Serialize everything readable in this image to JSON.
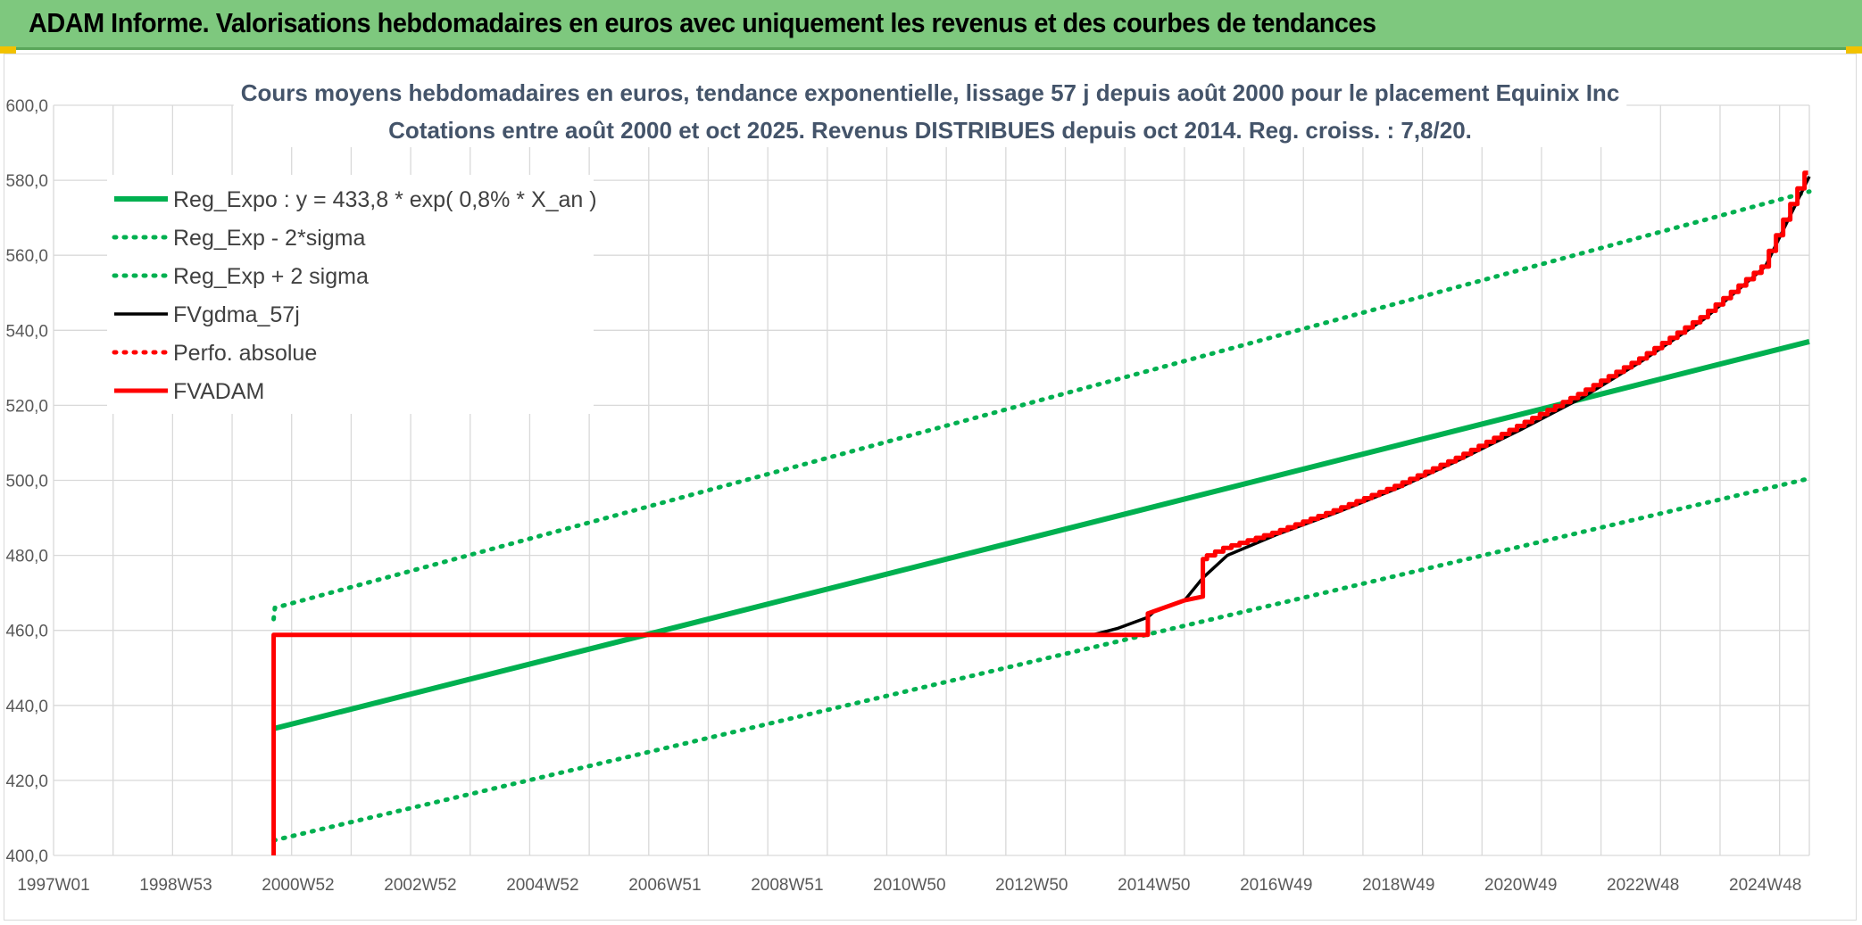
{
  "banner": {
    "title": "ADAM Informe. Valorisations hebdomadaires en euros avec uniquement les revenus et des courbes de tendances"
  },
  "colors": {
    "banner_bg": "#7ec87e",
    "green": "#00b050",
    "red": "#ff0000",
    "black": "#000000",
    "title": "#44546a"
  },
  "chart_data": {
    "type": "line",
    "title_lines": [
      "Cours moyens hebdomadaires en euros, tendance exponentielle, lissage 57 j depuis août 2000 pour le placement Equinix Inc",
      "Cotations entre août 2000 et oct 2025. Revenus DISTRIBUES depuis oct 2014. Reg. croiss. : 7,8/20."
    ],
    "ylim": [
      400,
      600
    ],
    "y_ticks": [
      "400,0",
      "420,0",
      "440,0",
      "460,0",
      "480,0",
      "500,0",
      "520,0",
      "540,0",
      "560,0",
      "580,0",
      "600,0"
    ],
    "xlim": [
      1997.0,
      2025.72
    ],
    "x_ticks": [
      {
        "x": 1997.0,
        "label": "1997W01"
      },
      {
        "x": 1999.0,
        "label": "1998W53"
      },
      {
        "x": 2001.0,
        "label": "2000W52"
      },
      {
        "x": 2003.0,
        "label": "2002W52"
      },
      {
        "x": 2005.0,
        "label": "2004W52"
      },
      {
        "x": 2007.0,
        "label": "2006W51"
      },
      {
        "x": 2009.0,
        "label": "2008W51"
      },
      {
        "x": 2011.0,
        "label": "2010W50"
      },
      {
        "x": 2013.0,
        "label": "2012W50"
      },
      {
        "x": 2015.0,
        "label": "2014W50"
      },
      {
        "x": 2017.0,
        "label": "2016W49"
      },
      {
        "x": 2019.0,
        "label": "2018W49"
      },
      {
        "x": 2021.0,
        "label": "2020W49"
      },
      {
        "x": 2023.0,
        "label": "2022W48"
      },
      {
        "x": 2025.0,
        "label": "2024W48"
      }
    ],
    "grid": true,
    "legend_position": "top-left",
    "series": [
      {
        "name": "Reg_Expo : y = 433,8 * exp( 0,8% *  X_an )",
        "style": "solid-thick",
        "color": "#00b050",
        "x": [
          2000.6,
          2025.72
        ],
        "y": [
          433.8,
          537.0
        ]
      },
      {
        "name": "Reg_Exp - 2*sigma",
        "style": "dotted",
        "color": "#00b050",
        "x": [
          2000.6,
          2025.72
        ],
        "y": [
          404.0,
          500.5
        ]
      },
      {
        "name": "Reg_Exp + 2 sigma",
        "style": "dotted",
        "color": "#00b050",
        "x": [
          2000.6,
          2000.62,
          2025.72
        ],
        "y": [
          463.0,
          466.0,
          577.0
        ]
      },
      {
        "name": "FVgdma_57j",
        "style": "solid",
        "color": "#000000",
        "x": [
          2000.6,
          2000.6,
          2014.0,
          2014.4,
          2014.9,
          2015.0,
          2015.5,
          2015.8,
          2016.2,
          2017.0,
          2018.0,
          2019.0,
          2020.0,
          2021.0,
          2022.0,
          2023.0,
          2024.0,
          2025.0,
          2025.72
        ],
        "y": [
          400.0,
          458.8,
          458.8,
          460.5,
          463.5,
          465.0,
          468.0,
          474.0,
          480.0,
          485.5,
          491.5,
          498.0,
          505.5,
          513.5,
          522.0,
          532.0,
          543.0,
          557.0,
          581.0
        ]
      },
      {
        "name": "Perfo. absolue",
        "style": "dotted",
        "color": "#ff0000",
        "x": [],
        "y": []
      },
      {
        "name": "FVADAM",
        "style": "solid-steps",
        "color": "#ff0000",
        "x": [
          2000.6,
          2000.6,
          2014.9,
          2014.9,
          2015.5,
          2015.8,
          2015.8,
          2016.2,
          2017.0,
          2018.0,
          2019.0,
          2020.0,
          2021.0,
          2022.0,
          2023.0,
          2024.0,
          2025.0,
          2025.7
        ],
        "y": [
          400.0,
          458.8,
          458.8,
          464.5,
          468.0,
          469.0,
          479.0,
          482.0,
          486.0,
          492.0,
          498.5,
          506.0,
          514.5,
          523.0,
          532.5,
          543.5,
          557.0,
          582.0
        ]
      }
    ]
  }
}
